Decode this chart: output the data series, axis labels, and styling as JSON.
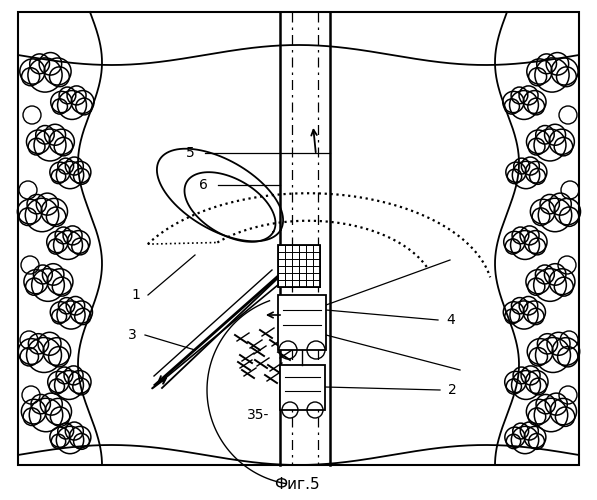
{
  "title": "Фиг.5",
  "background_color": "#ffffff",
  "title_fontsize": 11,
  "fig_width": 5.97,
  "fig_height": 5.0,
  "dpi": 100
}
